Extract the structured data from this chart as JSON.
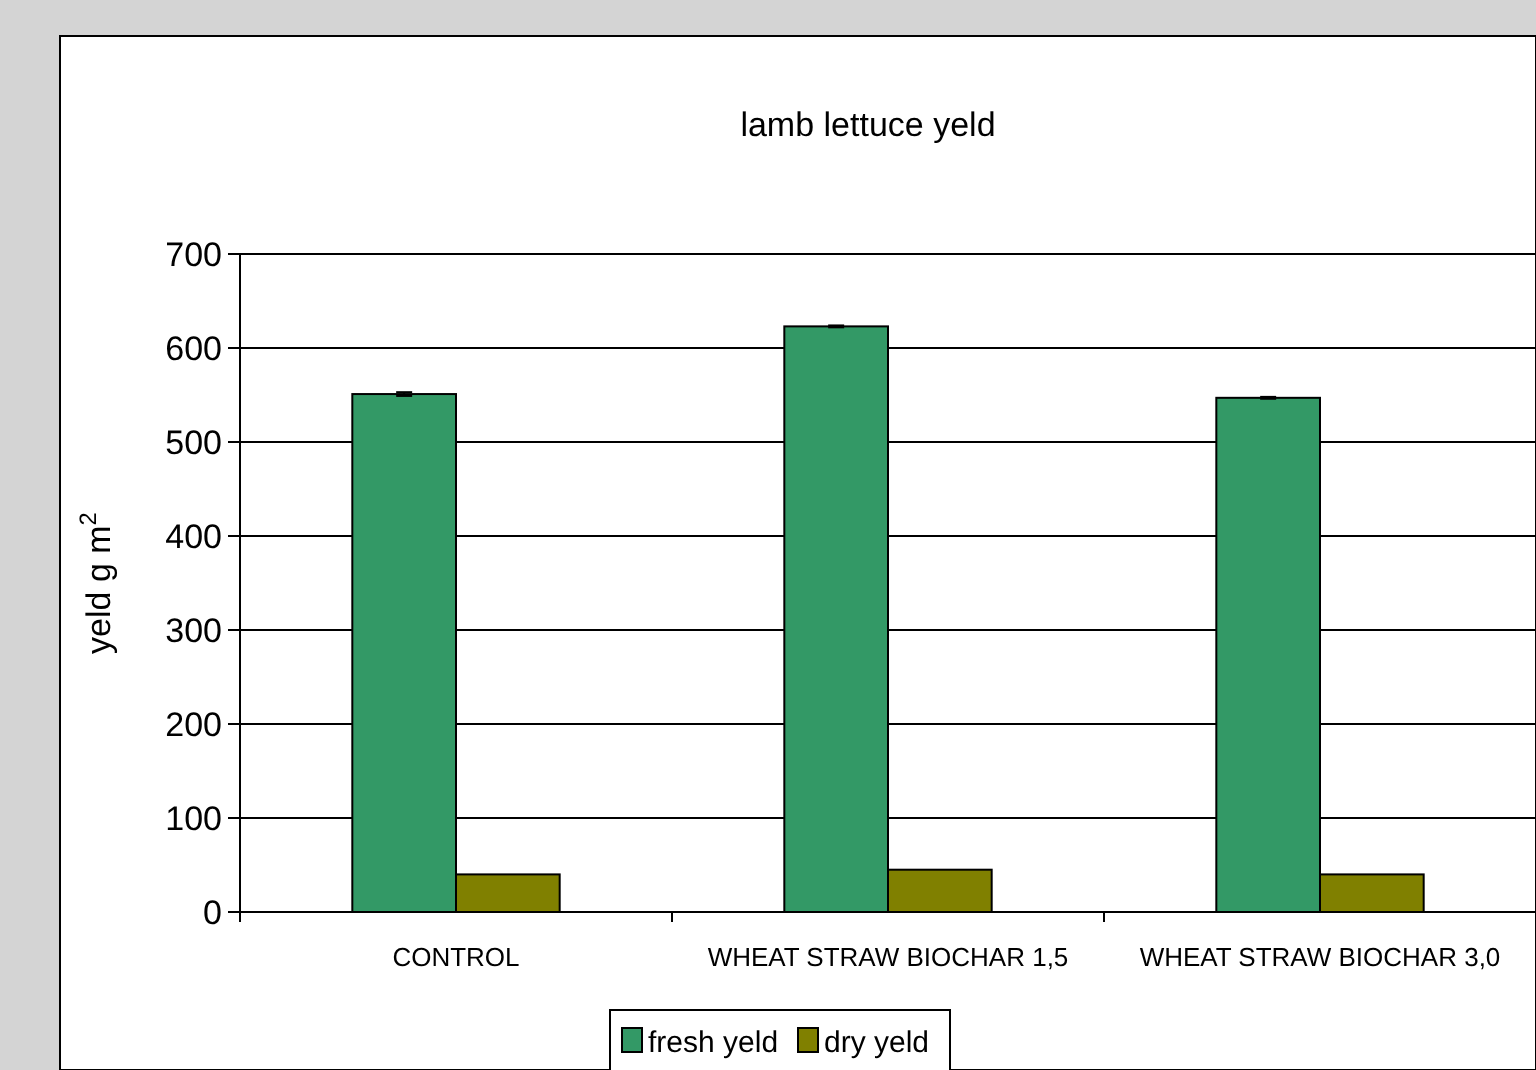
{
  "chart_data": {
    "type": "bar",
    "title": "lamb lettuce yeld",
    "ylabel": "yeld g m$^{2}$",
    "categories": [
      "CONTROL",
      "WHEAT STRAW BIOCHAR 1,5",
      "WHEAT STRAW BIOCHAR 3,0"
    ],
    "series": [
      {
        "name": "fresh yeld",
        "color": "#339966",
        "values": [
          551,
          623,
          547
        ],
        "errors": [
          2,
          1,
          1
        ]
      },
      {
        "name": "dry yeld",
        "color": "#808000",
        "values": [
          40,
          45,
          40
        ]
      }
    ],
    "ylim": [
      0,
      700
    ],
    "yticks": [
      0,
      100,
      200,
      300,
      400,
      500,
      600,
      700
    ],
    "grid": "y",
    "legend": "bottom"
  }
}
